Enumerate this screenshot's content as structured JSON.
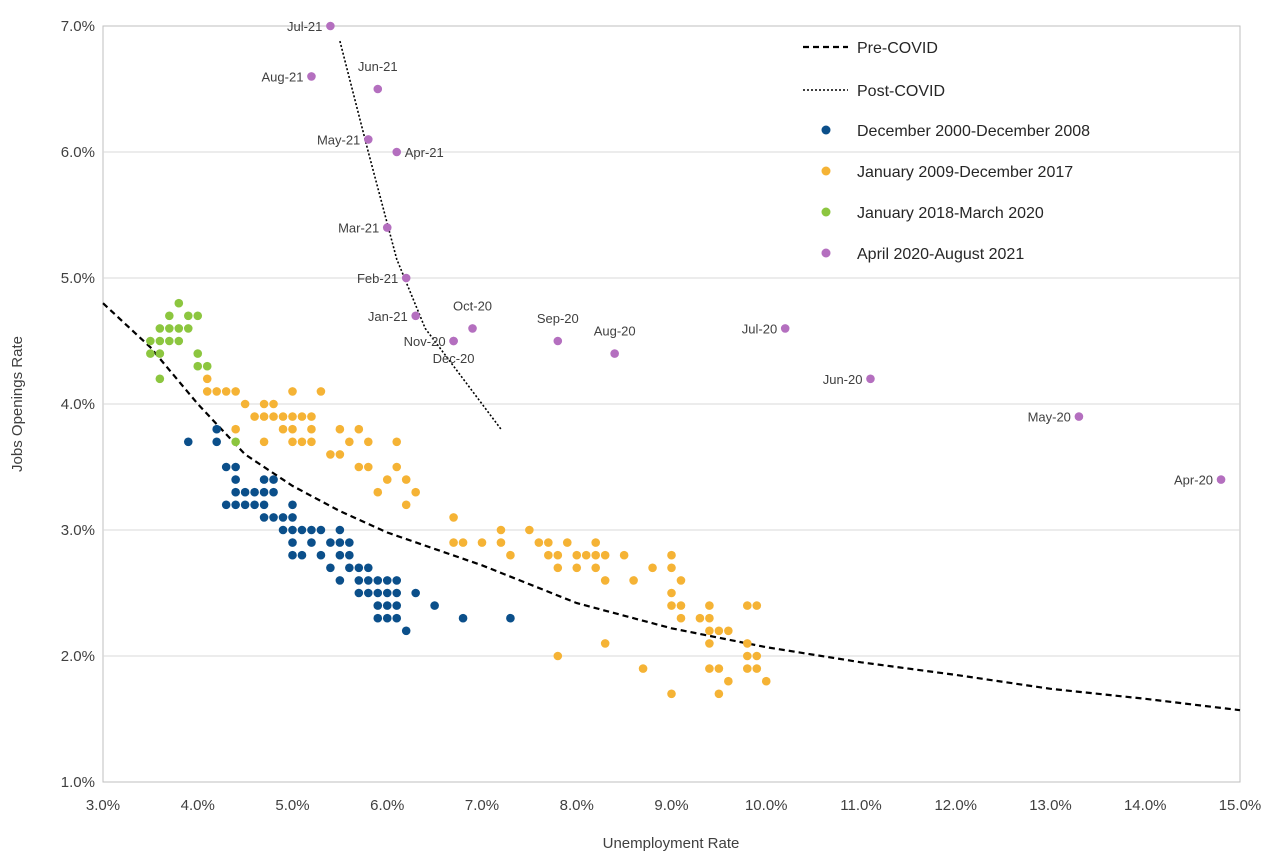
{
  "chart_data": {
    "type": "scatter",
    "xlabel": "Unemployment  Rate",
    "ylabel": "Jobs Openings Rate",
    "xlim": [
      3.0,
      15.0
    ],
    "ylim": [
      1.0,
      7.0
    ],
    "x_ticks": [
      3.0,
      4.0,
      5.0,
      6.0,
      7.0,
      8.0,
      9.0,
      10.0,
      11.0,
      12.0,
      13.0,
      14.0,
      15.0
    ],
    "x_tick_labels": [
      "3.0%",
      "4.0%",
      "5.0%",
      "6.0%",
      "7.0%",
      "8.0%",
      "9.0%",
      "10.0%",
      "11.0%",
      "12.0%",
      "13.0%",
      "14.0%",
      "15.0%"
    ],
    "y_ticks": [
      1.0,
      2.0,
      3.0,
      4.0,
      5.0,
      6.0,
      7.0
    ],
    "y_tick_labels": [
      "1.0%",
      "2.0%",
      "3.0%",
      "4.0%",
      "5.0%",
      "6.0%",
      "7.0%"
    ],
    "grid": "horizontal",
    "legend_position": "top-right",
    "lines": [
      {
        "name": "Pre-COVID",
        "style": "dashed",
        "color": "#000000",
        "x": [
          3.0,
          3.5,
          4.0,
          4.5,
          5.0,
          5.5,
          6.0,
          6.5,
          7.0,
          8.0,
          9.0,
          10.0,
          11.0,
          12.0,
          13.0,
          14.0,
          15.0
        ],
        "y": [
          4.8,
          4.45,
          4.0,
          3.6,
          3.35,
          3.15,
          2.98,
          2.85,
          2.72,
          2.42,
          2.22,
          2.07,
          1.95,
          1.85,
          1.74,
          1.66,
          1.57
        ]
      },
      {
        "name": "Post-COVID",
        "style": "dotted",
        "color": "#000000",
        "x": [
          5.5,
          5.8,
          6.1,
          6.4,
          6.8,
          7.2
        ],
        "y": [
          6.88,
          6.0,
          5.15,
          4.6,
          4.2,
          3.8
        ]
      }
    ],
    "series": [
      {
        "name": "December 2000-December 2008",
        "color": "#0b4f8a",
        "points": [
          [
            3.9,
            3.7
          ],
          [
            4.2,
            3.8
          ],
          [
            4.2,
            3.7
          ],
          [
            4.3,
            3.5
          ],
          [
            4.3,
            3.2
          ],
          [
            4.4,
            3.5
          ],
          [
            4.4,
            3.4
          ],
          [
            4.4,
            3.3
          ],
          [
            4.4,
            3.2
          ],
          [
            4.5,
            3.3
          ],
          [
            4.5,
            3.2
          ],
          [
            4.6,
            3.3
          ],
          [
            4.6,
            3.2
          ],
          [
            4.7,
            3.4
          ],
          [
            4.7,
            3.3
          ],
          [
            4.7,
            3.2
          ],
          [
            4.8,
            3.4
          ],
          [
            4.8,
            3.3
          ],
          [
            4.7,
            3.1
          ],
          [
            4.8,
            3.1
          ],
          [
            4.9,
            3.1
          ],
          [
            5.0,
            3.1
          ],
          [
            5.0,
            3.2
          ],
          [
            4.9,
            3.0
          ],
          [
            5.0,
            3.0
          ],
          [
            5.0,
            2.9
          ],
          [
            5.0,
            2.8
          ],
          [
            5.1,
            3.0
          ],
          [
            5.1,
            2.8
          ],
          [
            5.2,
            3.0
          ],
          [
            5.2,
            2.9
          ],
          [
            5.3,
            3.0
          ],
          [
            5.3,
            2.8
          ],
          [
            5.4,
            2.9
          ],
          [
            5.4,
            2.7
          ],
          [
            5.5,
            3.0
          ],
          [
            5.5,
            2.9
          ],
          [
            5.5,
            2.8
          ],
          [
            5.5,
            2.6
          ],
          [
            5.6,
            2.9
          ],
          [
            5.6,
            2.8
          ],
          [
            5.6,
            2.7
          ],
          [
            5.7,
            2.7
          ],
          [
            5.7,
            2.6
          ],
          [
            5.7,
            2.5
          ],
          [
            5.8,
            2.7
          ],
          [
            5.8,
            2.6
          ],
          [
            5.8,
            2.5
          ],
          [
            5.9,
            2.6
          ],
          [
            5.9,
            2.5
          ],
          [
            5.9,
            2.4
          ],
          [
            5.9,
            2.3
          ],
          [
            6.0,
            2.6
          ],
          [
            6.0,
            2.5
          ],
          [
            6.0,
            2.4
          ],
          [
            6.0,
            2.3
          ],
          [
            6.1,
            2.6
          ],
          [
            6.1,
            2.5
          ],
          [
            6.1,
            2.4
          ],
          [
            6.1,
            2.3
          ],
          [
            6.2,
            2.2
          ],
          [
            6.3,
            2.5
          ],
          [
            6.5,
            2.4
          ],
          [
            6.8,
            2.3
          ],
          [
            7.3,
            2.3
          ]
        ]
      },
      {
        "name": "January 2009-December 2017",
        "color": "#f5b335",
        "points": [
          [
            4.1,
            4.2
          ],
          [
            4.1,
            4.1
          ],
          [
            4.2,
            4.1
          ],
          [
            4.3,
            4.1
          ],
          [
            4.4,
            4.1
          ],
          [
            4.4,
            3.8
          ],
          [
            4.5,
            4.0
          ],
          [
            4.6,
            3.9
          ],
          [
            4.7,
            4.0
          ],
          [
            4.7,
            3.9
          ],
          [
            4.7,
            3.7
          ],
          [
            4.8,
            4.0
          ],
          [
            4.8,
            3.9
          ],
          [
            4.9,
            3.9
          ],
          [
            4.9,
            3.8
          ],
          [
            5.0,
            4.1
          ],
          [
            5.0,
            3.9
          ],
          [
            5.0,
            3.8
          ],
          [
            5.0,
            3.7
          ],
          [
            5.1,
            3.9
          ],
          [
            5.1,
            3.7
          ],
          [
            5.2,
            3.9
          ],
          [
            5.2,
            3.8
          ],
          [
            5.2,
            3.7
          ],
          [
            5.3,
            4.1
          ],
          [
            5.4,
            3.6
          ],
          [
            5.5,
            3.8
          ],
          [
            5.5,
            3.6
          ],
          [
            5.6,
            3.7
          ],
          [
            5.7,
            3.8
          ],
          [
            5.7,
            3.5
          ],
          [
            5.8,
            3.7
          ],
          [
            5.8,
            3.5
          ],
          [
            5.9,
            3.3
          ],
          [
            6.0,
            3.4
          ],
          [
            6.1,
            3.7
          ],
          [
            6.1,
            3.5
          ],
          [
            6.2,
            3.4
          ],
          [
            6.2,
            3.2
          ],
          [
            6.3,
            3.3
          ],
          [
            6.7,
            3.1
          ],
          [
            6.7,
            2.9
          ],
          [
            6.8,
            2.9
          ],
          [
            7.0,
            2.9
          ],
          [
            7.2,
            3.0
          ],
          [
            7.2,
            2.9
          ],
          [
            7.3,
            2.8
          ],
          [
            7.5,
            3.0
          ],
          [
            7.6,
            2.9
          ],
          [
            7.7,
            2.9
          ],
          [
            7.7,
            2.8
          ],
          [
            7.8,
            2.8
          ],
          [
            7.8,
            2.7
          ],
          [
            7.8,
            2.0
          ],
          [
            7.9,
            2.9
          ],
          [
            8.0,
            2.7
          ],
          [
            8.0,
            2.8
          ],
          [
            8.1,
            2.8
          ],
          [
            8.2,
            2.9
          ],
          [
            8.2,
            2.8
          ],
          [
            8.2,
            2.7
          ],
          [
            8.3,
            2.8
          ],
          [
            8.3,
            2.6
          ],
          [
            8.3,
            2.1
          ],
          [
            8.5,
            2.8
          ],
          [
            8.6,
            2.6
          ],
          [
            8.7,
            1.9
          ],
          [
            8.8,
            2.7
          ],
          [
            9.0,
            2.8
          ],
          [
            9.0,
            2.7
          ],
          [
            9.0,
            2.5
          ],
          [
            9.0,
            2.4
          ],
          [
            9.0,
            1.7
          ],
          [
            9.1,
            2.6
          ],
          [
            9.1,
            2.4
          ],
          [
            9.1,
            2.3
          ],
          [
            9.3,
            2.3
          ],
          [
            9.4,
            2.4
          ],
          [
            9.4,
            2.3
          ],
          [
            9.4,
            2.2
          ],
          [
            9.4,
            2.1
          ],
          [
            9.4,
            1.9
          ],
          [
            9.5,
            2.2
          ],
          [
            9.5,
            1.9
          ],
          [
            9.5,
            1.7
          ],
          [
            9.6,
            2.2
          ],
          [
            9.6,
            1.8
          ],
          [
            9.8,
            2.4
          ],
          [
            9.8,
            2.1
          ],
          [
            9.8,
            2.0
          ],
          [
            9.8,
            1.9
          ],
          [
            9.9,
            2.4
          ],
          [
            9.9,
            2.0
          ],
          [
            9.9,
            1.9
          ],
          [
            10.0,
            1.8
          ]
        ]
      },
      {
        "name": "January 2018-March 2020",
        "color": "#8cc63f",
        "points": [
          [
            3.5,
            4.5
          ],
          [
            3.5,
            4.4
          ],
          [
            3.6,
            4.6
          ],
          [
            3.6,
            4.5
          ],
          [
            3.6,
            4.4
          ],
          [
            3.6,
            4.2
          ],
          [
            3.7,
            4.7
          ],
          [
            3.7,
            4.6
          ],
          [
            3.7,
            4.5
          ],
          [
            3.8,
            4.8
          ],
          [
            3.8,
            4.6
          ],
          [
            3.8,
            4.5
          ],
          [
            3.9,
            4.7
          ],
          [
            3.9,
            4.6
          ],
          [
            4.0,
            4.7
          ],
          [
            4.0,
            4.4
          ],
          [
            4.0,
            4.3
          ],
          [
            4.1,
            4.3
          ],
          [
            4.4,
            3.7
          ]
        ]
      },
      {
        "name": "April 2020-August 2021",
        "color": "#b46fbf",
        "points": [
          {
            "x": 14.8,
            "y": 3.4,
            "label": "Apr-20"
          },
          {
            "x": 13.3,
            "y": 3.9,
            "label": "May-20"
          },
          {
            "x": 11.1,
            "y": 4.2,
            "label": "Jun-20"
          },
          {
            "x": 10.2,
            "y": 4.6,
            "label": "Jul-20"
          },
          {
            "x": 8.4,
            "y": 4.4,
            "label": "Aug-20"
          },
          {
            "x": 7.8,
            "y": 4.5,
            "label": "Sep-20"
          },
          {
            "x": 6.9,
            "y": 4.6,
            "label": "Oct-20"
          },
          {
            "x": 6.7,
            "y": 4.5,
            "label": "Nov-20"
          },
          {
            "x": 6.7,
            "y": 4.5,
            "label": "Dec-20"
          },
          {
            "x": 6.3,
            "y": 4.7,
            "label": "Jan-21"
          },
          {
            "x": 6.2,
            "y": 5.0,
            "label": "Feb-21"
          },
          {
            "x": 6.0,
            "y": 5.4,
            "label": "Mar-21"
          },
          {
            "x": 6.1,
            "y": 6.0,
            "label": "Apr-21"
          },
          {
            "x": 5.8,
            "y": 6.1,
            "label": "May-21"
          },
          {
            "x": 5.9,
            "y": 6.5,
            "label": "Jun-21"
          },
          {
            "x": 5.4,
            "y": 7.0,
            "label": "Jul-21"
          },
          {
            "x": 5.2,
            "y": 6.6,
            "label": "Aug-21"
          }
        ]
      }
    ]
  }
}
